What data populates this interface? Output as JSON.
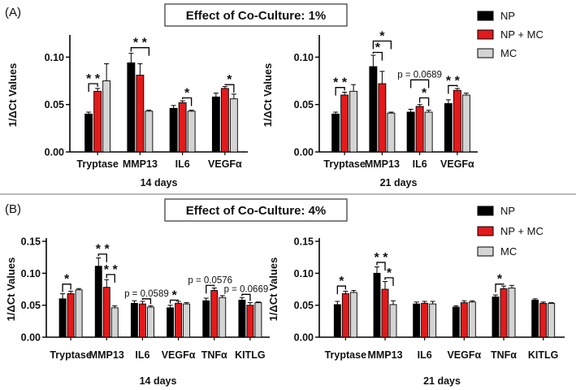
{
  "figure": {
    "panels": [
      {
        "label": "(A)",
        "title": "Effect of Co-Culture: 1%"
      },
      {
        "label": "(B)",
        "title": "Effect of Co-Culture: 4%"
      }
    ],
    "legend": {
      "entries": [
        {
          "name": "NP",
          "color": "#000000"
        },
        {
          "name": "NP + MC",
          "color": "#e31a1c"
        },
        {
          "name": "MC",
          "color": "#d4d4d4"
        }
      ]
    }
  },
  "chart_data": [
    {
      "type": "bar",
      "panel": "A",
      "subtitle": "14 days",
      "ylabel": "1/ΔCt Values",
      "ylim": [
        0,
        0.12
      ],
      "yticks": [
        "0.00",
        "0.05",
        "0.10"
      ],
      "categories": [
        "Tryptase",
        "MMP13",
        "IL6",
        "VEGFα"
      ],
      "series": [
        {
          "name": "NP",
          "values": [
            0.04,
            0.094,
            0.046,
            0.058
          ],
          "errors": [
            0.002,
            0.01,
            0.003,
            0.004
          ]
        },
        {
          "name": "NP + MC",
          "values": [
            0.064,
            0.081,
            0.052,
            0.067
          ],
          "errors": [
            0.003,
            0.012,
            0.002,
            0.002
          ]
        },
        {
          "name": "MC",
          "values": [
            0.075,
            0.043,
            0.043,
            0.056
          ],
          "errors": [
            0.018,
            0.001,
            0.001,
            0.005
          ]
        }
      ],
      "annotations": [
        {
          "cat": 0,
          "a": 0,
          "b": 1,
          "text": "* *",
          "y": 0.072
        },
        {
          "cat": 1,
          "a": 0,
          "b": 2,
          "text": "* *",
          "y": 0.11
        },
        {
          "cat": 2,
          "a": 1,
          "b": 2,
          "text": "*",
          "y": 0.057
        },
        {
          "cat": 3,
          "a": 1,
          "b": 2,
          "text": "*",
          "y": 0.071
        }
      ]
    },
    {
      "type": "bar",
      "panel": "A",
      "subtitle": "21 days",
      "ylabel": "1/ΔCt Values",
      "ylim": [
        0,
        0.12
      ],
      "yticks": [
        "0.00",
        "0.05",
        "0.10"
      ],
      "categories": [
        "Tryptase",
        "MMP13",
        "IL6",
        "VEGFα"
      ],
      "series": [
        {
          "name": "NP",
          "values": [
            0.04,
            0.09,
            0.042,
            0.051
          ],
          "errors": [
            0.002,
            0.012,
            0.003,
            0.004
          ]
        },
        {
          "name": "NP + MC",
          "values": [
            0.06,
            0.072,
            0.048,
            0.065
          ],
          "errors": [
            0.003,
            0.013,
            0.002,
            0.002
          ]
        },
        {
          "name": "MC",
          "values": [
            0.064,
            0.041,
            0.042,
            0.06
          ],
          "errors": [
            0.007,
            0.001,
            0.002,
            0.002
          ]
        }
      ],
      "annotations": [
        {
          "cat": 0,
          "a": 0,
          "b": 1,
          "text": "* *",
          "y": 0.068
        },
        {
          "cat": 1,
          "a": 0,
          "b": 1,
          "text": "*",
          "y": 0.105
        },
        {
          "cat": 1,
          "a": 0,
          "b": 2,
          "text": "*",
          "y": 0.117
        },
        {
          "cat": 2,
          "a": 0,
          "b": 2,
          "text": "p = 0.0689",
          "y": 0.076
        },
        {
          "cat": 2,
          "a": 1,
          "b": 2,
          "text": "*",
          "y": 0.057
        },
        {
          "cat": 3,
          "a": 0,
          "b": 1,
          "text": "* *",
          "y": 0.07
        }
      ]
    },
    {
      "type": "bar",
      "panel": "B",
      "subtitle": "14 days",
      "ylabel": "1/ΔCt Values",
      "ylim": [
        0,
        0.15
      ],
      "yticks": [
        "0.00",
        "0.05",
        "0.10",
        "0.15"
      ],
      "categories": [
        "Tryptase",
        "MMP13",
        "IL6",
        "VEGFα",
        "TNFα",
        "KITLG"
      ],
      "series": [
        {
          "name": "NP",
          "values": [
            0.06,
            0.111,
            0.053,
            0.046,
            0.057,
            0.058
          ],
          "errors": [
            0.008,
            0.013,
            0.004,
            0.004,
            0.004,
            0.004
          ]
        },
        {
          "name": "NP + MC",
          "values": [
            0.068,
            0.078,
            0.052,
            0.053,
            0.073,
            0.05
          ],
          "errors": [
            0.004,
            0.012,
            0.004,
            0.003,
            0.004,
            0.004
          ]
        },
        {
          "name": "MC",
          "values": [
            0.074,
            0.046,
            0.047,
            0.052,
            0.062,
            0.054
          ],
          "errors": [
            0.002,
            0.003,
            0.002,
            0.002,
            0.003,
            0.001
          ]
        }
      ],
      "annotations": [
        {
          "cat": 0,
          "a": 0,
          "b": 1,
          "text": "*",
          "y": 0.083
        },
        {
          "cat": 1,
          "a": 0,
          "b": 1,
          "text": "* *",
          "y": 0.13
        },
        {
          "cat": 1,
          "a": 1,
          "b": 2,
          "text": "* *",
          "y": 0.098
        },
        {
          "cat": 2,
          "a": 1,
          "b": 2,
          "text": "p = 0.0589",
          "y": 0.06
        },
        {
          "cat": 3,
          "a": 0,
          "b": 1,
          "text": "*",
          "y": 0.058
        },
        {
          "cat": 4,
          "a": 0,
          "b": 1,
          "text": "p = 0.0576",
          "y": 0.081
        },
        {
          "cat": 5,
          "a": 0,
          "b": 1,
          "text": "p = 0.0669",
          "y": 0.067
        }
      ]
    },
    {
      "type": "bar",
      "panel": "B",
      "subtitle": "21 days",
      "ylabel": "1/ΔCt Values",
      "ylim": [
        0,
        0.15
      ],
      "yticks": [
        "0.00",
        "0.05",
        "0.10",
        "0.15"
      ],
      "categories": [
        "Tryptase",
        "MMP13",
        "IL6",
        "VEGFα",
        "TNFα",
        "KITLG"
      ],
      "series": [
        {
          "name": "NP",
          "values": [
            0.051,
            0.1,
            0.052,
            0.047,
            0.063,
            0.058
          ],
          "errors": [
            0.005,
            0.01,
            0.003,
            0.002,
            0.003,
            0.002
          ]
        },
        {
          "name": "NP + MC",
          "values": [
            0.068,
            0.075,
            0.053,
            0.054,
            0.076,
            0.053
          ],
          "errors": [
            0.004,
            0.012,
            0.003,
            0.003,
            0.004,
            0.002
          ]
        },
        {
          "name": "MC",
          "values": [
            0.07,
            0.051,
            0.052,
            0.055,
            0.077,
            0.053
          ],
          "errors": [
            0.003,
            0.006,
            0.004,
            0.002,
            0.004,
            0.001
          ]
        }
      ],
      "annotations": [
        {
          "cat": 0,
          "a": 0,
          "b": 1,
          "text": "*",
          "y": 0.08
        },
        {
          "cat": 1,
          "a": 0,
          "b": 1,
          "text": "* *",
          "y": 0.117
        },
        {
          "cat": 1,
          "a": 1,
          "b": 2,
          "text": "*",
          "y": 0.093
        },
        {
          "cat": 4,
          "a": 0,
          "b": 1,
          "text": "*",
          "y": 0.083
        }
      ]
    }
  ]
}
